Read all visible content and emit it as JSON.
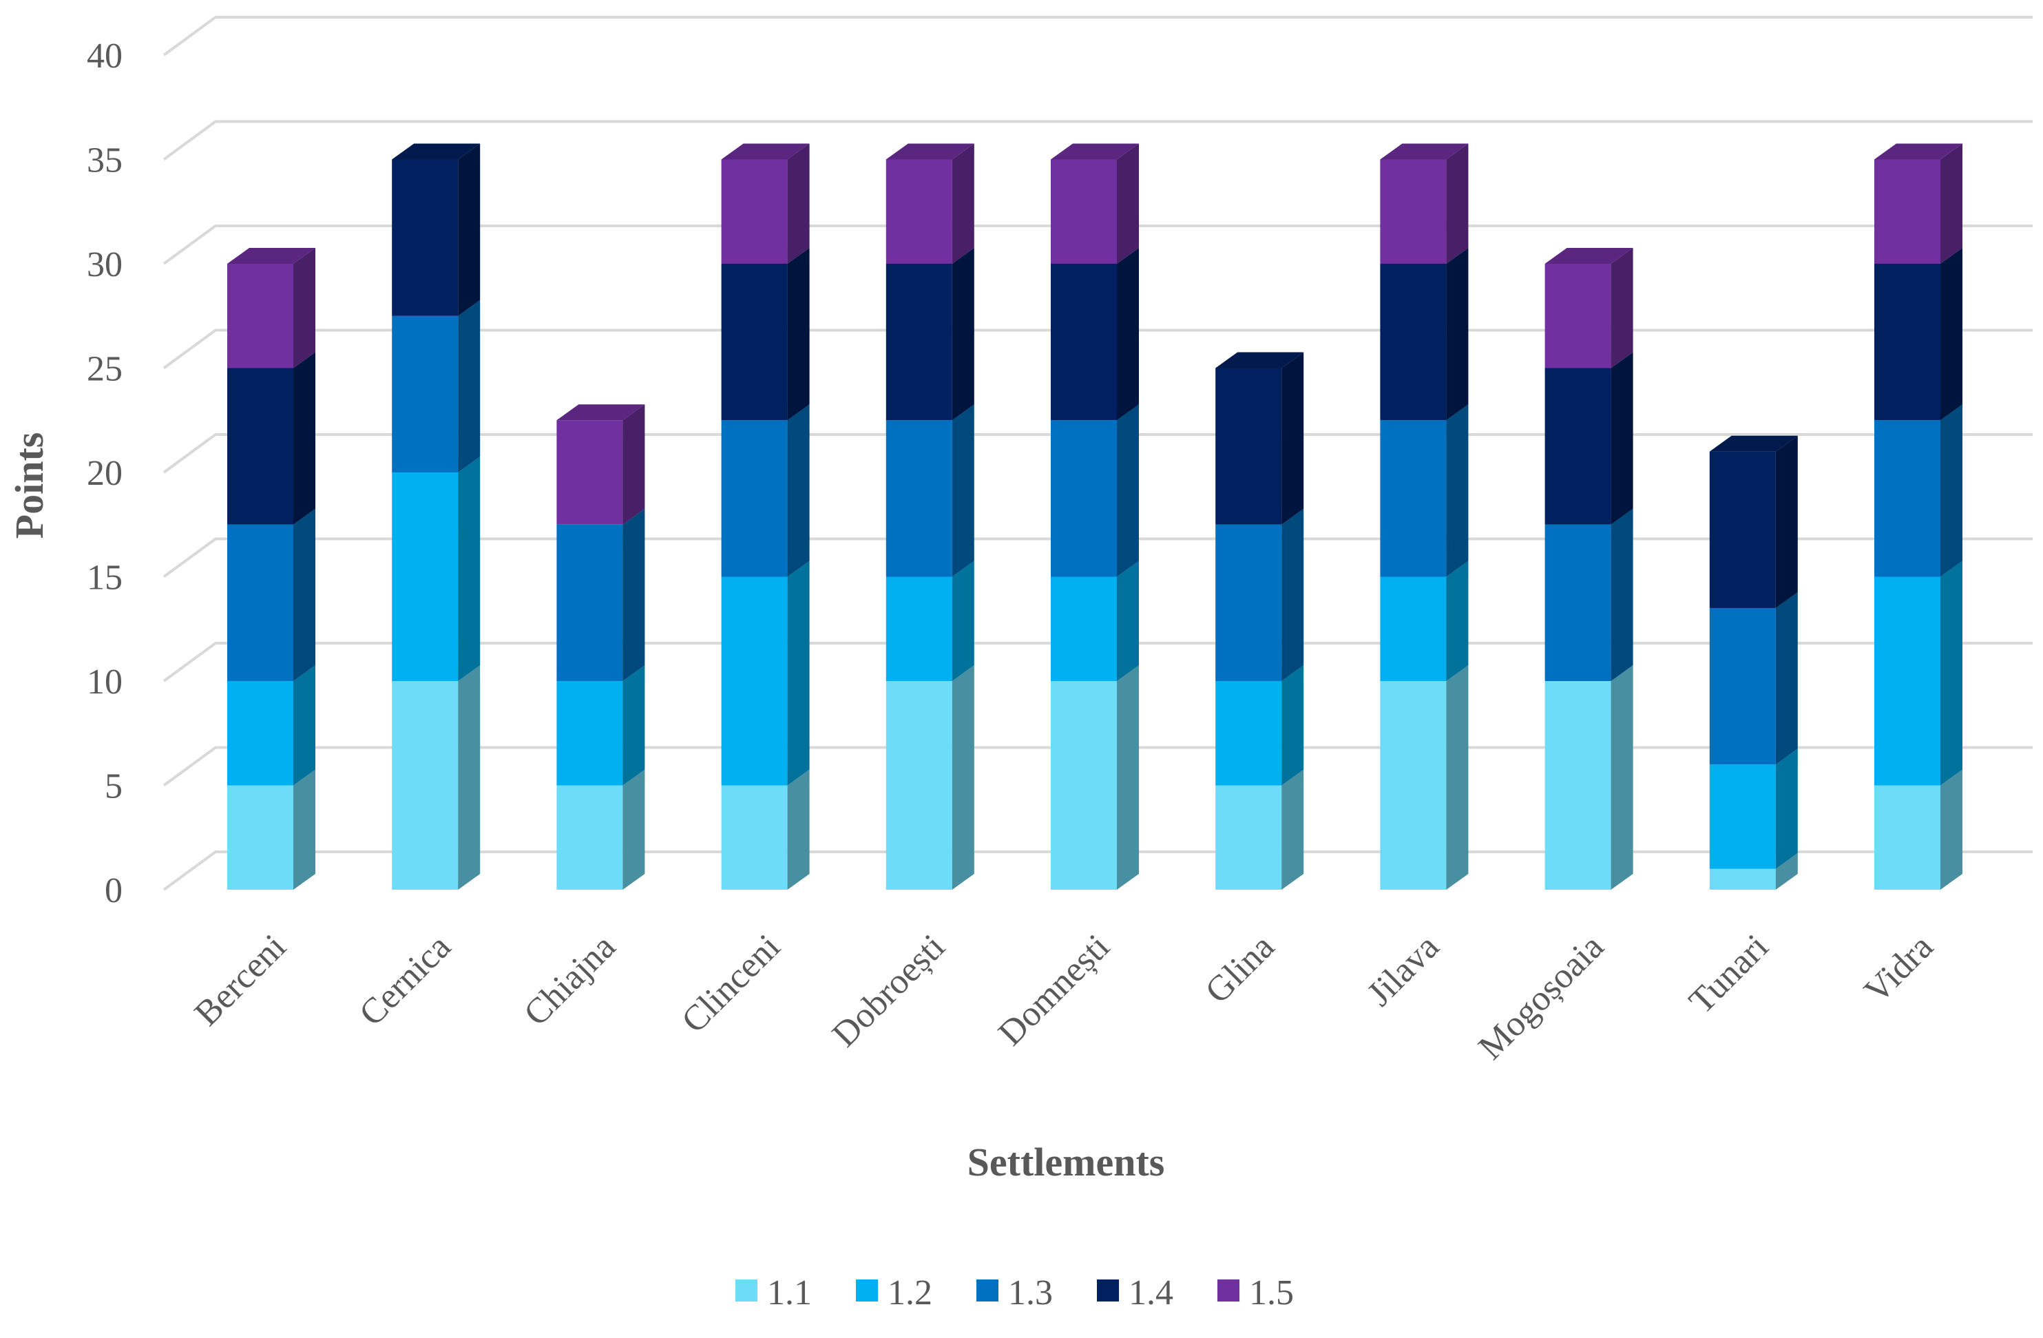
{
  "chart_data": {
    "type": "bar",
    "stacked": true,
    "style": "3d-stacked-column",
    "title": "",
    "xlabel": "Settlements",
    "ylabel": "Points",
    "ylim": [
      0,
      40
    ],
    "ytick_step": 5,
    "yticks": [
      "0",
      "5",
      "10",
      "15",
      "20",
      "25",
      "30",
      "35",
      "40"
    ],
    "grid": true,
    "legend_position": "bottom",
    "categories": [
      "Berceni",
      "Cernica",
      "Chiajna",
      "Clinceni",
      "Dobroești",
      "Domnești",
      "Glina",
      "Jilava",
      "Mogoșoaia",
      "Tunari",
      "Vidra"
    ],
    "series": [
      {
        "name": "1.1",
        "color": "#6ddcf8",
        "values": [
          5,
          10,
          5,
          5,
          10,
          10,
          5,
          10,
          10,
          1,
          5
        ]
      },
      {
        "name": "1.2",
        "color": "#00b0f0",
        "values": [
          5,
          10,
          5,
          10,
          5,
          5,
          5,
          5,
          0,
          5,
          10
        ]
      },
      {
        "name": "1.3",
        "color": "#0070c0",
        "values": [
          7.5,
          7.5,
          7.5,
          7.5,
          7.5,
          7.5,
          7.5,
          7.5,
          7.5,
          7.5,
          7.5
        ]
      },
      {
        "name": "1.4",
        "color": "#002060",
        "values": [
          7.5,
          7.5,
          0,
          7.5,
          7.5,
          7.5,
          7.5,
          7.5,
          7.5,
          7.5,
          7.5
        ]
      },
      {
        "name": "1.5",
        "color": "#7030a0",
        "values": [
          5,
          0,
          5,
          5,
          5,
          5,
          0,
          5,
          5,
          0,
          5
        ]
      }
    ]
  }
}
